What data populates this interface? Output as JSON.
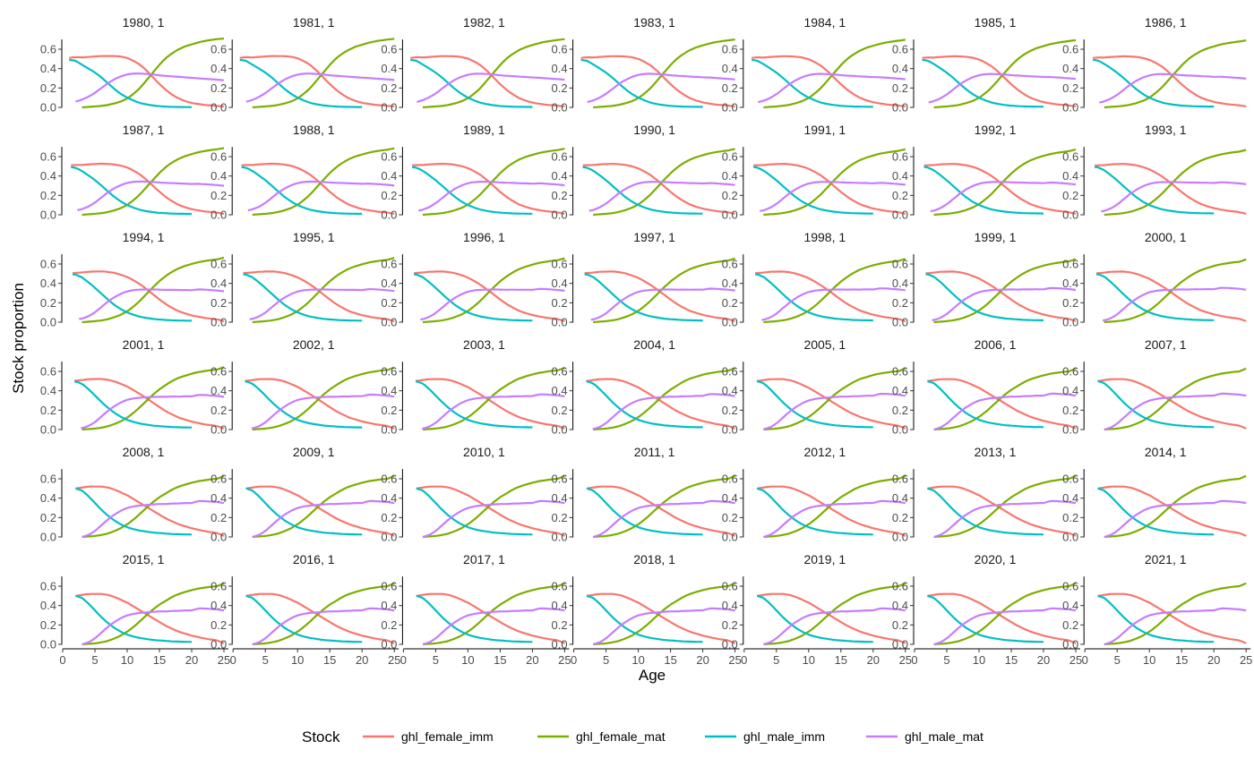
{
  "chart_data": {
    "type": "line",
    "title": "",
    "xlabel": "Age",
    "ylabel": "Stock proportion",
    "xlim": [
      0,
      25
    ],
    "ylim": [
      0,
      0.72
    ],
    "x_ticks": [
      0,
      5,
      10,
      15,
      20,
      25
    ],
    "y_ticks": [
      "0.0",
      "0.2",
      "0.4",
      "0.6"
    ],
    "grid": false,
    "facet_layout": {
      "rows": 6,
      "cols": 7
    },
    "legend": {
      "title": "Stock",
      "position": "bottom",
      "entries": [
        {
          "name": "ghl_female_imm",
          "color": "#F8766D"
        },
        {
          "name": "ghl_female_mat",
          "color": "#7CAE00"
        },
        {
          "name": "ghl_male_imm",
          "color": "#00BFC4"
        },
        {
          "name": "ghl_male_mat",
          "color": "#C77CFF"
        }
      ]
    },
    "panels": [
      {
        "label": "1980, 1"
      },
      {
        "label": "1981, 1"
      },
      {
        "label": "1982, 1"
      },
      {
        "label": "1983, 1"
      },
      {
        "label": "1984, 1"
      },
      {
        "label": "1985, 1"
      },
      {
        "label": "1986, 1"
      },
      {
        "label": "1987, 1"
      },
      {
        "label": "1988, 1"
      },
      {
        "label": "1989, 1"
      },
      {
        "label": "1990, 1"
      },
      {
        "label": "1991, 1"
      },
      {
        "label": "1992, 1"
      },
      {
        "label": "1993, 1"
      },
      {
        "label": "1994, 1"
      },
      {
        "label": "1995, 1"
      },
      {
        "label": "1996, 1"
      },
      {
        "label": "1997, 1"
      },
      {
        "label": "1998, 1"
      },
      {
        "label": "1999, 1"
      },
      {
        "label": "2000, 1"
      },
      {
        "label": "2001, 1"
      },
      {
        "label": "2002, 1"
      },
      {
        "label": "2003, 1"
      },
      {
        "label": "2004, 1"
      },
      {
        "label": "2005, 1"
      },
      {
        "label": "2006, 1"
      },
      {
        "label": "2007, 1"
      },
      {
        "label": "2008, 1"
      },
      {
        "label": "2009, 1"
      },
      {
        "label": "2010, 1"
      },
      {
        "label": "2011, 1"
      },
      {
        "label": "2012, 1"
      },
      {
        "label": "2013, 1"
      },
      {
        "label": "2014, 1"
      },
      {
        "label": "2015, 1"
      },
      {
        "label": "2016, 1"
      },
      {
        "label": "2017, 1"
      },
      {
        "label": "2018, 1"
      },
      {
        "label": "2019, 1"
      },
      {
        "label": "2020, 1"
      },
      {
        "label": "2021, 1"
      }
    ],
    "series_profiles": [
      {
        "name": "ghl_female_imm",
        "color": "#F8766D",
        "early": {
          "x": [
            1,
            2,
            3,
            4,
            5,
            6,
            7,
            8,
            9,
            10,
            11,
            12,
            13,
            14,
            15,
            16,
            17,
            18,
            19,
            20,
            21,
            22,
            23,
            24,
            25
          ],
          "y": [
            0.51,
            0.52,
            0.515,
            0.52,
            0.525,
            0.53,
            0.53,
            0.53,
            0.525,
            0.51,
            0.48,
            0.44,
            0.38,
            0.31,
            0.24,
            0.18,
            0.13,
            0.09,
            0.065,
            0.045,
            0.035,
            0.025,
            0.02,
            0.015,
            0.01
          ]
        },
        "late": {
          "x": [
            2,
            3,
            4,
            5,
            6,
            7,
            8,
            9,
            10,
            11,
            12,
            13,
            14,
            15,
            16,
            17,
            18,
            19,
            20,
            21,
            22,
            23,
            24,
            25
          ],
          "y": [
            0.5,
            0.51,
            0.52,
            0.52,
            0.52,
            0.51,
            0.49,
            0.46,
            0.43,
            0.39,
            0.35,
            0.31,
            0.27,
            0.23,
            0.19,
            0.16,
            0.13,
            0.11,
            0.09,
            0.075,
            0.06,
            0.05,
            0.04,
            0.01
          ]
        }
      },
      {
        "name": "ghl_female_mat",
        "color": "#7CAE00",
        "early": {
          "x": [
            3,
            4,
            5,
            6,
            7,
            8,
            9,
            10,
            11,
            12,
            13,
            14,
            15,
            16,
            17,
            18,
            19,
            20,
            21,
            22,
            23,
            24,
            25
          ],
          "y": [
            0.0,
            0.005,
            0.01,
            0.015,
            0.025,
            0.04,
            0.06,
            0.09,
            0.14,
            0.2,
            0.28,
            0.36,
            0.44,
            0.51,
            0.56,
            0.6,
            0.63,
            0.65,
            0.67,
            0.685,
            0.695,
            0.705,
            0.71
          ]
        },
        "late": {
          "x": [
            3,
            4,
            5,
            6,
            7,
            8,
            9,
            10,
            11,
            12,
            13,
            14,
            15,
            16,
            17,
            18,
            19,
            20,
            21,
            22,
            23,
            24,
            25
          ],
          "y": [
            0.0,
            0.005,
            0.01,
            0.02,
            0.035,
            0.06,
            0.09,
            0.13,
            0.18,
            0.24,
            0.3,
            0.36,
            0.41,
            0.45,
            0.49,
            0.52,
            0.54,
            0.56,
            0.575,
            0.585,
            0.595,
            0.6,
            0.63
          ]
        }
      },
      {
        "name": "ghl_male_imm",
        "color": "#00BFC4",
        "early": {
          "x": [
            1,
            2,
            3,
            4,
            5,
            6,
            7,
            8,
            9,
            10,
            11,
            12,
            13,
            14,
            15,
            16,
            17,
            18,
            19,
            20
          ],
          "y": [
            0.49,
            0.48,
            0.44,
            0.4,
            0.36,
            0.31,
            0.25,
            0.19,
            0.14,
            0.1,
            0.07,
            0.045,
            0.03,
            0.02,
            0.012,
            0.008,
            0.005,
            0.004,
            0.003,
            0.003
          ]
        },
        "late": {
          "x": [
            2,
            3,
            4,
            5,
            6,
            7,
            8,
            9,
            10,
            11,
            12,
            13,
            14,
            15,
            16,
            17,
            18,
            19,
            20
          ],
          "y": [
            0.5,
            0.48,
            0.42,
            0.35,
            0.28,
            0.22,
            0.17,
            0.13,
            0.1,
            0.08,
            0.065,
            0.055,
            0.045,
            0.04,
            0.035,
            0.03,
            0.028,
            0.026,
            0.025
          ]
        }
      },
      {
        "name": "ghl_male_mat",
        "color": "#C77CFF",
        "early": {
          "x": [
            2,
            3,
            4,
            5,
            6,
            7,
            8,
            9,
            10,
            11,
            12,
            13,
            14,
            15,
            16,
            17,
            18,
            19,
            20,
            21,
            22,
            23,
            24,
            25
          ],
          "y": [
            0.06,
            0.08,
            0.11,
            0.15,
            0.2,
            0.25,
            0.29,
            0.32,
            0.34,
            0.35,
            0.35,
            0.345,
            0.34,
            0.33,
            0.325,
            0.32,
            0.315,
            0.31,
            0.305,
            0.3,
            0.295,
            0.29,
            0.285,
            0.28
          ]
        },
        "late": {
          "x": [
            3,
            4,
            5,
            6,
            7,
            8,
            9,
            10,
            11,
            12,
            13,
            14,
            15,
            16,
            17,
            18,
            19,
            20,
            21,
            22,
            23,
            24,
            25
          ],
          "y": [
            0.0,
            0.02,
            0.06,
            0.12,
            0.18,
            0.23,
            0.27,
            0.3,
            0.315,
            0.325,
            0.33,
            0.335,
            0.34,
            0.34,
            0.345,
            0.345,
            0.35,
            0.35,
            0.37,
            0.37,
            0.365,
            0.36,
            0.35
          ]
        }
      }
    ]
  }
}
